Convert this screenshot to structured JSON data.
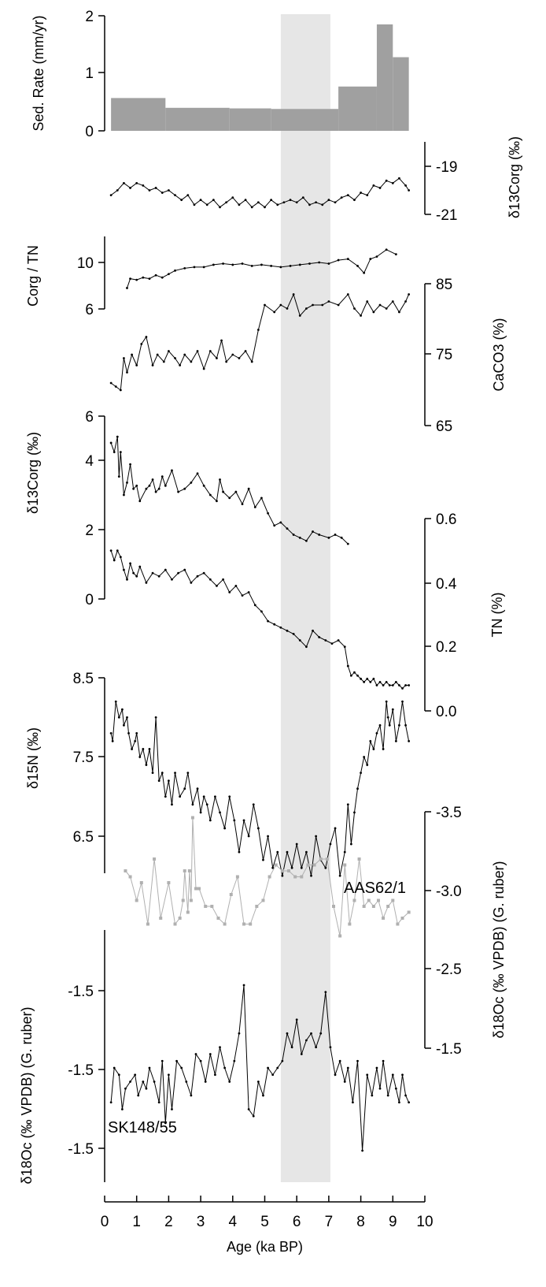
{
  "chart_data": {
    "type": "stacked_multi_panel_line",
    "x_axis": {
      "label": "Age (ka BP)",
      "range": [
        0,
        10
      ],
      "ticks": [
        "0",
        "1",
        "2",
        "3",
        "4",
        "5",
        "6",
        "7",
        "8",
        "9",
        "10"
      ]
    },
    "shaded_interval": [
      5.5,
      7.05
    ],
    "panels": [
      {
        "id": "sed_rate",
        "type": "step_area",
        "ylabel": "Sed. Rate (mm/yr)",
        "axis_side": "left",
        "ylim": [
          0,
          2
        ],
        "ticks": [
          "0",
          "1",
          "2"
        ],
        "color": "#a0a0a0",
        "steps": [
          {
            "x0": 0.2,
            "x1": 1.9,
            "y": 0.57
          },
          {
            "x0": 1.9,
            "x1": 3.9,
            "y": 0.4
          },
          {
            "x0": 3.9,
            "x1": 5.2,
            "y": 0.39
          },
          {
            "x0": 5.2,
            "x1": 7.3,
            "y": 0.38
          },
          {
            "x0": 7.3,
            "x1": 8.5,
            "y": 0.77
          },
          {
            "x0": 8.5,
            "x1": 9.0,
            "y": 1.85
          },
          {
            "x0": 9.0,
            "x1": 9.5,
            "y": 1.28
          }
        ]
      },
      {
        "id": "d13c_org_top",
        "type": "line",
        "ylabel": "δ13Corg (‰)",
        "axis_side": "right",
        "ylim": [
          -21,
          -18.7
        ],
        "ticks": [
          "-19",
          "-21"
        ],
        "color": "#000000",
        "x": [
          0.2,
          0.4,
          0.6,
          0.8,
          1.0,
          1.2,
          1.4,
          1.6,
          1.8,
          2.0,
          2.2,
          2.4,
          2.6,
          2.8,
          3.0,
          3.2,
          3.4,
          3.6,
          3.8,
          4.0,
          4.2,
          4.4,
          4.6,
          4.8,
          5.0,
          5.2,
          5.4,
          5.6,
          5.8,
          6.0,
          6.2,
          6.4,
          6.6,
          6.8,
          7.0,
          7.2,
          7.4,
          7.6,
          7.8,
          8.0,
          8.2,
          8.4,
          8.6,
          8.8,
          9.0,
          9.2,
          9.4,
          9.5
        ],
        "y": [
          -20.2,
          -20.0,
          -19.7,
          -19.9,
          -19.7,
          -19.8,
          -20.0,
          -19.9,
          -20.1,
          -20.0,
          -20.2,
          -20.4,
          -20.2,
          -20.6,
          -20.4,
          -20.6,
          -20.4,
          -20.7,
          -20.5,
          -20.3,
          -20.6,
          -20.4,
          -20.7,
          -20.5,
          -20.7,
          -20.4,
          -20.6,
          -20.5,
          -20.4,
          -20.5,
          -20.3,
          -20.6,
          -20.5,
          -20.6,
          -20.4,
          -20.5,
          -20.3,
          -20.2,
          -20.4,
          -20.1,
          -20.2,
          -19.8,
          -19.9,
          -19.6,
          -19.7,
          -19.5,
          -19.8,
          -20.0
        ]
      },
      {
        "id": "corg_tn",
        "type": "line",
        "ylabel": "Corg / TN",
        "axis_side": "left",
        "ylim": [
          5.8,
          11.6
        ],
        "ticks": [
          "6",
          "10"
        ],
        "color": "#000000",
        "x": [
          0.7,
          0.8,
          1.0,
          1.2,
          1.4,
          1.6,
          1.8,
          2.0,
          2.2,
          2.5,
          2.8,
          3.1,
          3.4,
          3.7,
          4.0,
          4.3,
          4.6,
          4.9,
          5.2,
          5.5,
          5.8,
          6.1,
          6.4,
          6.7,
          7.0,
          7.3,
          7.6,
          7.9,
          8.1,
          8.3,
          8.5,
          8.8,
          9.1
        ],
        "y": [
          7.8,
          8.6,
          8.5,
          8.7,
          8.6,
          8.9,
          8.7,
          9.0,
          9.3,
          9.5,
          9.6,
          9.6,
          9.8,
          9.9,
          9.8,
          9.9,
          9.7,
          9.8,
          9.7,
          9.6,
          9.7,
          9.8,
          9.9,
          10.0,
          9.9,
          10.2,
          10.3,
          9.7,
          9.1,
          10.3,
          10.5,
          11.1,
          10.7
        ]
      },
      {
        "id": "caco3",
        "type": "line",
        "ylabel": "CaCO3 (%)",
        "axis_side": "right",
        "ylim": [
          65,
          85
        ],
        "ticks": [
          "65",
          "75",
          "85"
        ],
        "color": "#000000",
        "x": [
          0.2,
          0.35,
          0.5,
          0.6,
          0.7,
          0.85,
          1.0,
          1.15,
          1.3,
          1.5,
          1.65,
          1.85,
          2.0,
          2.2,
          2.35,
          2.5,
          2.7,
          2.9,
          3.1,
          3.3,
          3.5,
          3.65,
          3.8,
          4.0,
          4.2,
          4.4,
          4.6,
          4.8,
          5.0,
          5.3,
          5.5,
          5.7,
          5.9,
          6.1,
          6.3,
          6.5,
          6.8,
          7.0,
          7.3,
          7.6,
          7.8,
          8.0,
          8.2,
          8.4,
          8.6,
          8.8,
          9.0,
          9.2,
          9.4,
          9.5
        ],
        "y": [
          71.0,
          70.5,
          70.0,
          74.5,
          72.5,
          75.0,
          73.5,
          76.5,
          77.5,
          73.5,
          75.0,
          74.0,
          75.5,
          74.5,
          73.5,
          75.0,
          74.0,
          75.5,
          73.0,
          75.5,
          74.5,
          77.0,
          74.0,
          75.0,
          74.5,
          75.5,
          74.0,
          78.5,
          82.0,
          81.0,
          82.0,
          81.5,
          83.5,
          80.5,
          81.5,
          82.0,
          82.0,
          82.5,
          82.0,
          83.5,
          81.5,
          80.5,
          82.5,
          81.0,
          82.0,
          81.5,
          82.5,
          81.0,
          82.5,
          83.5
        ]
      },
      {
        "id": "d13c_org_mid",
        "type": "line",
        "ylabel": "δ13Corg (‰)",
        "axis_side": "left",
        "ylim": [
          0,
          6
        ],
        "ticks": [
          "0",
          "2",
          "4",
          "6"
        ],
        "color": "#000000",
        "x": [
          0.2,
          0.3,
          0.4,
          0.45,
          0.5,
          0.6,
          0.7,
          0.8,
          0.9,
          1.0,
          1.1,
          1.3,
          1.4,
          1.5,
          1.6,
          1.7,
          1.8,
          1.9,
          2.1,
          2.3,
          2.5,
          2.7,
          2.9,
          3.1,
          3.3,
          3.5,
          3.6,
          3.7,
          3.9,
          4.1,
          4.3,
          4.5,
          4.7,
          4.9,
          5.1,
          5.3,
          5.5,
          5.7,
          5.9,
          6.1,
          6.3,
          6.5,
          6.7,
          7.0,
          7.2,
          7.4,
          7.6
        ],
        "y": [
          5.1,
          4.8,
          5.3,
          4.0,
          4.8,
          3.4,
          3.8,
          4.4,
          3.6,
          3.7,
          3.2,
          3.6,
          3.7,
          3.9,
          3.5,
          3.6,
          4.0,
          3.7,
          4.2,
          3.5,
          3.6,
          3.8,
          4.1,
          3.7,
          3.4,
          3.2,
          3.9,
          3.5,
          3.3,
          3.5,
          3.1,
          3.6,
          3.0,
          3.3,
          2.8,
          2.4,
          2.5,
          2.3,
          2.1,
          2.0,
          1.9,
          2.2,
          2.1,
          2.0,
          2.1,
          2.0,
          1.8
        ]
      },
      {
        "id": "tn",
        "type": "line",
        "ylabel": "TN (%)",
        "axis_side": "right",
        "ylim": [
          0,
          0.6
        ],
        "ticks": [
          "0.0",
          "0.2",
          "0.4",
          "0.6"
        ],
        "color": "#000000",
        "x": [
          0.2,
          0.3,
          0.4,
          0.5,
          0.6,
          0.7,
          0.8,
          0.9,
          1.0,
          1.1,
          1.3,
          1.5,
          1.7,
          1.9,
          2.1,
          2.3,
          2.5,
          2.7,
          2.9,
          3.1,
          3.3,
          3.5,
          3.7,
          3.9,
          4.1,
          4.3,
          4.5,
          4.7,
          4.9,
          5.1,
          5.3,
          5.5,
          5.7,
          5.9,
          6.1,
          6.3,
          6.5,
          6.7,
          6.9,
          7.1,
          7.3,
          7.5,
          7.6,
          7.7,
          7.8,
          7.9,
          8.0,
          8.1,
          8.2,
          8.3,
          8.4,
          8.5,
          8.6,
          8.7,
          8.8,
          8.9,
          9.0,
          9.1,
          9.2,
          9.3,
          9.4,
          9.5
        ],
        "y": [
          0.5,
          0.47,
          0.5,
          0.48,
          0.44,
          0.41,
          0.46,
          0.43,
          0.42,
          0.45,
          0.4,
          0.43,
          0.42,
          0.44,
          0.41,
          0.43,
          0.44,
          0.4,
          0.42,
          0.43,
          0.41,
          0.39,
          0.41,
          0.37,
          0.39,
          0.36,
          0.37,
          0.33,
          0.31,
          0.28,
          0.27,
          0.26,
          0.25,
          0.24,
          0.22,
          0.2,
          0.25,
          0.23,
          0.22,
          0.21,
          0.22,
          0.2,
          0.14,
          0.11,
          0.12,
          0.11,
          0.1,
          0.09,
          0.1,
          0.09,
          0.1,
          0.08,
          0.09,
          0.08,
          0.09,
          0.08,
          0.08,
          0.09,
          0.08,
          0.07,
          0.08,
          0.08
        ]
      },
      {
        "id": "d15n",
        "type": "line",
        "ylabel": "δ15N (‰)",
        "axis_side": "left",
        "ylim": [
          6.0,
          8.5
        ],
        "ticks": [
          "6.5",
          "7.5",
          "8.5"
        ],
        "color": "#000000",
        "x": [
          0.2,
          0.25,
          0.35,
          0.45,
          0.55,
          0.6,
          0.7,
          0.75,
          0.85,
          0.95,
          1.0,
          1.1,
          1.2,
          1.3,
          1.4,
          1.5,
          1.6,
          1.7,
          1.8,
          1.9,
          2.0,
          2.1,
          2.2,
          2.35,
          2.5,
          2.6,
          2.75,
          2.9,
          3.0,
          3.1,
          3.2,
          3.3,
          3.45,
          3.6,
          3.75,
          3.9,
          4.05,
          4.2,
          4.35,
          4.5,
          4.65,
          4.8,
          4.95,
          5.1,
          5.25,
          5.4,
          5.55,
          5.7,
          5.85,
          6.0,
          6.15,
          6.3,
          6.45,
          6.6,
          6.75,
          6.9,
          7.05,
          7.2,
          7.35,
          7.5,
          7.6,
          7.7,
          7.8,
          7.9,
          8.0,
          8.1,
          8.2,
          8.3,
          8.4,
          8.5,
          8.6,
          8.7,
          8.8,
          8.85,
          8.9,
          9.0,
          9.1,
          9.2,
          9.3,
          9.4,
          9.5
        ],
        "y": [
          7.8,
          7.7,
          8.2,
          8.0,
          8.1,
          7.9,
          8.0,
          7.8,
          7.6,
          7.7,
          7.8,
          7.5,
          7.6,
          7.4,
          7.6,
          7.3,
          8.0,
          7.2,
          7.3,
          7.0,
          7.2,
          6.9,
          7.3,
          7.0,
          7.1,
          7.3,
          6.9,
          7.1,
          6.8,
          7.0,
          6.9,
          6.7,
          7.0,
          6.8,
          6.6,
          7.0,
          6.7,
          6.3,
          6.7,
          6.5,
          6.9,
          6.6,
          6.2,
          6.5,
          6.1,
          6.3,
          6.0,
          6.3,
          6.1,
          6.4,
          6.1,
          6.3,
          6.0,
          6.5,
          6.2,
          6.1,
          6.4,
          6.6,
          6.0,
          6.3,
          6.9,
          6.4,
          6.8,
          7.1,
          7.3,
          7.5,
          7.4,
          7.7,
          7.6,
          7.8,
          7.9,
          7.6,
          8.2,
          8.0,
          7.9,
          8.1,
          7.7,
          7.9,
          8.2,
          7.9,
          7.7
        ]
      },
      {
        "id": "d18o_aas",
        "type": "line",
        "ylabel": "δ18Oc (‰ VPDB) (G. ruber)",
        "series_label": "AAS62/1",
        "axis_side": "right",
        "ylim": [
          -1.5,
          -3.5
        ],
        "ticks": [
          "-1.5",
          "-2.5",
          "-3.0",
          "-3.5"
        ],
        "color": "#b0b0b0",
        "x": [
          0.65,
          0.8,
          1.0,
          1.15,
          1.35,
          1.55,
          1.75,
          2.0,
          2.2,
          2.35,
          2.45,
          2.5,
          2.6,
          2.65,
          2.7,
          2.75,
          2.85,
          2.95,
          3.15,
          3.35,
          3.55,
          3.75,
          3.95,
          4.15,
          4.35,
          4.55,
          4.75,
          4.95,
          5.15,
          5.35,
          5.55,
          5.75,
          5.95,
          6.15,
          6.35,
          6.55,
          6.75,
          6.95,
          7.15,
          7.35,
          7.5,
          7.65,
          7.8,
          7.95,
          8.1,
          8.25,
          8.4,
          8.55,
          8.7,
          8.85,
          9.0,
          9.15,
          9.3,
          9.5
        ],
        "y": [
          -3.0,
          -2.95,
          -2.75,
          -2.9,
          -2.55,
          -3.1,
          -2.6,
          -2.9,
          -2.55,
          -2.6,
          -2.75,
          -3.0,
          -2.65,
          -3.0,
          -2.75,
          -3.45,
          -2.85,
          -2.85,
          -2.7,
          -2.7,
          -2.6,
          -2.55,
          -2.8,
          -2.95,
          -2.55,
          -2.55,
          -2.7,
          -2.75,
          -2.95,
          -3.05,
          -3.0,
          -3.0,
          -2.95,
          -2.95,
          -3.05,
          -3.05,
          -3.1,
          -3.1,
          -2.7,
          -2.45,
          -3.05,
          -2.55,
          -2.75,
          -3.1,
          -2.7,
          -2.75,
          -2.7,
          -2.75,
          -2.6,
          -2.7,
          -2.75,
          -2.55,
          -2.6,
          -2.65
        ]
      },
      {
        "id": "d18o_sk",
        "type": "line",
        "ylabel": "δ18Oc (‰ VPDB) (G. ruber)",
        "series_label": "SK148/55",
        "axis_side": "left",
        "ylim": [
          -1.1,
          -2.5
        ],
        "ticks": [
          "-1.5",
          "-1.5",
          "-1.5"
        ],
        "color": "#000000",
        "x": [
          0.2,
          0.3,
          0.45,
          0.55,
          0.65,
          0.8,
          0.95,
          1.05,
          1.2,
          1.3,
          1.4,
          1.55,
          1.7,
          1.8,
          1.9,
          2.0,
          2.1,
          2.25,
          2.4,
          2.55,
          2.7,
          2.85,
          3.0,
          3.15,
          3.3,
          3.45,
          3.6,
          3.75,
          3.9,
          4.05,
          4.2,
          4.35,
          4.5,
          4.65,
          4.8,
          4.95,
          5.1,
          5.25,
          5.4,
          5.55,
          5.7,
          5.85,
          6.0,
          6.15,
          6.3,
          6.45,
          6.6,
          6.75,
          6.9,
          7.05,
          7.2,
          7.35,
          7.5,
          7.6,
          7.75,
          7.9,
          8.05,
          8.2,
          8.35,
          8.5,
          8.6,
          8.7,
          8.85,
          9.0,
          9.1,
          9.2,
          9.3,
          9.4,
          9.5
        ],
        "y": [
          -1.85,
          -1.6,
          -1.65,
          -1.9,
          -1.75,
          -1.7,
          -1.65,
          -1.8,
          -1.7,
          -1.75,
          -1.6,
          -1.7,
          -1.85,
          -1.55,
          -2.0,
          -1.65,
          -1.9,
          -1.55,
          -1.6,
          -1.7,
          -1.8,
          -1.5,
          -1.55,
          -1.7,
          -1.5,
          -1.65,
          -1.45,
          -1.6,
          -1.7,
          -1.55,
          -1.35,
          -1.0,
          -1.9,
          -1.95,
          -1.7,
          -1.8,
          -1.6,
          -1.65,
          -1.6,
          -1.55,
          -1.35,
          -1.45,
          -1.25,
          -1.5,
          -1.4,
          -1.35,
          -1.45,
          -1.35,
          -1.05,
          -1.45,
          -1.65,
          -1.55,
          -1.7,
          -1.6,
          -1.85,
          -1.55,
          -2.2,
          -1.65,
          -1.8,
          -1.6,
          -1.75,
          -1.55,
          -1.8,
          -1.65,
          -1.75,
          -1.85,
          -1.65,
          -1.8,
          -1.85
        ]
      }
    ]
  }
}
